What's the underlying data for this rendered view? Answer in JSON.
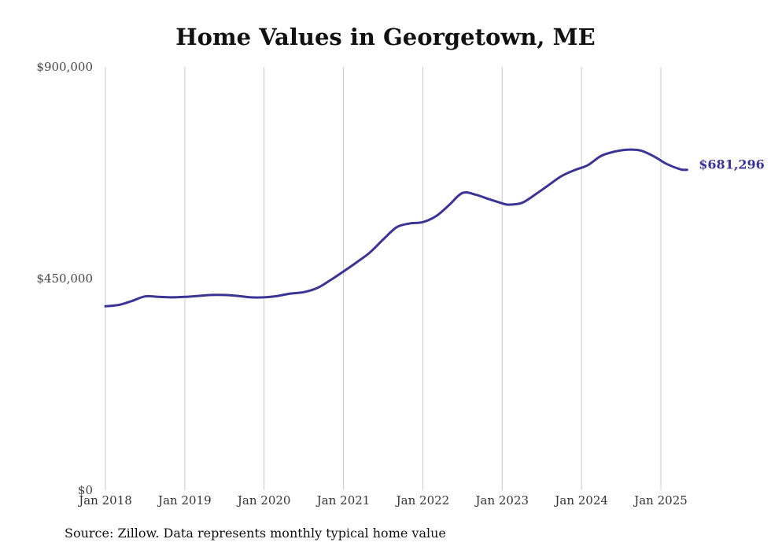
{
  "chart_data": {
    "type": "line",
    "title": "Home Values in Georgetown, ME",
    "xlabel": "",
    "ylabel": "",
    "ylim": [
      0,
      900000
    ],
    "y_ticks": [
      {
        "value": 0,
        "label": "$0"
      },
      {
        "value": 450000,
        "label": "$450,000"
      },
      {
        "value": 900000,
        "label": "$900,000"
      }
    ],
    "x_ticks": [
      {
        "value": 2018.0,
        "label": "Jan 2018"
      },
      {
        "value": 2019.0,
        "label": "Jan 2019"
      },
      {
        "value": 2020.0,
        "label": "Jan 2020"
      },
      {
        "value": 2021.0,
        "label": "Jan 2021"
      },
      {
        "value": 2022.0,
        "label": "Jan 2022"
      },
      {
        "value": 2023.0,
        "label": "Jan 2023"
      },
      {
        "value": 2024.0,
        "label": "Jan 2024"
      },
      {
        "value": 2025.0,
        "label": "Jan 2025"
      }
    ],
    "xlim": [
      2018.0,
      2025.33
    ],
    "grid": "vertical",
    "series": [
      {
        "color": "#3b3495",
        "end_label": "$681,296",
        "points": [
          [
            2018.0,
            391000
          ],
          [
            2018.17,
            394000
          ],
          [
            2018.33,
            402000
          ],
          [
            2018.5,
            412000
          ],
          [
            2018.67,
            411000
          ],
          [
            2018.83,
            410000
          ],
          [
            2019.0,
            411000
          ],
          [
            2019.17,
            413000
          ],
          [
            2019.33,
            415000
          ],
          [
            2019.5,
            415000
          ],
          [
            2019.67,
            413000
          ],
          [
            2019.83,
            410000
          ],
          [
            2020.0,
            410000
          ],
          [
            2020.17,
            413000
          ],
          [
            2020.33,
            418000
          ],
          [
            2020.5,
            421000
          ],
          [
            2020.67,
            430000
          ],
          [
            2020.83,
            446000
          ],
          [
            2021.0,
            465000
          ],
          [
            2021.17,
            485000
          ],
          [
            2021.33,
            505000
          ],
          [
            2021.5,
            533000
          ],
          [
            2021.67,
            559000
          ],
          [
            2021.83,
            567000
          ],
          [
            2022.0,
            570000
          ],
          [
            2022.17,
            583000
          ],
          [
            2022.33,
            606000
          ],
          [
            2022.5,
            632000
          ],
          [
            2022.67,
            628000
          ],
          [
            2022.83,
            619000
          ],
          [
            2023.0,
            610000
          ],
          [
            2023.08,
            607000
          ],
          [
            2023.25,
            611000
          ],
          [
            2023.42,
            629000
          ],
          [
            2023.58,
            648000
          ],
          [
            2023.75,
            668000
          ],
          [
            2023.92,
            681000
          ],
          [
            2024.08,
            691000
          ],
          [
            2024.25,
            711000
          ],
          [
            2024.42,
            720000
          ],
          [
            2024.58,
            724000
          ],
          [
            2024.75,
            722000
          ],
          [
            2024.92,
            709000
          ],
          [
            2025.08,
            693000
          ],
          [
            2025.25,
            682000
          ],
          [
            2025.33,
            681296
          ]
        ]
      }
    ]
  },
  "source_text": "Source: Zillow. Data represents monthly typical home value"
}
